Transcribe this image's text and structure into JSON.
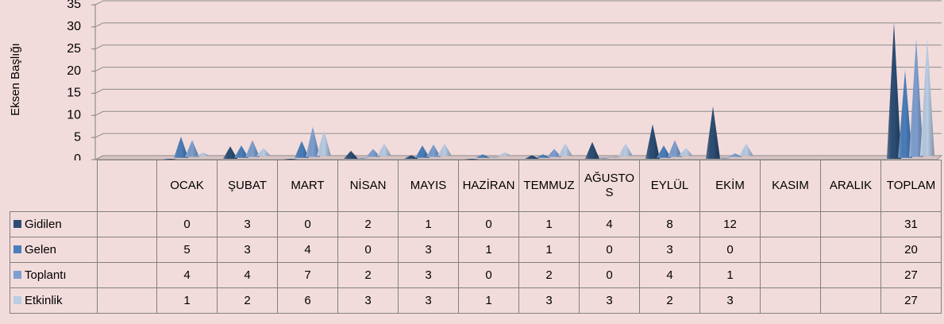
{
  "chart_data": {
    "type": "pyramid",
    "y_axis_title": "Eksen Başlığı",
    "categories": [
      null,
      "OCAK",
      "ŞUBAT",
      "MART",
      "NİSAN",
      "MAYIS",
      "HAZİRAN",
      "TEMMUZ",
      "AĞUSTOS",
      "EYLÜL",
      "EKİM",
      "KASIM",
      "ARALIK",
      "TOPLAM"
    ],
    "series": [
      {
        "name": "Gidilen",
        "color": "#2c4d75",
        "values": [
          null,
          0,
          3,
          0,
          2,
          1,
          0,
          1,
          4,
          8,
          12,
          null,
          null,
          31
        ]
      },
      {
        "name": "Gelen",
        "color": "#4a7ebb",
        "values": [
          null,
          5,
          3,
          4,
          0,
          3,
          1,
          1,
          0,
          3,
          0,
          null,
          null,
          20
        ]
      },
      {
        "name": "Toplantı",
        "color": "#7e9fd0",
        "values": [
          null,
          4,
          4,
          7,
          2,
          3,
          0,
          2,
          0,
          4,
          1,
          null,
          null,
          27
        ]
      },
      {
        "name": "Etkinlik",
        "color": "#b9cde5",
        "values": [
          null,
          1,
          2,
          6,
          3,
          3,
          1,
          3,
          3,
          2,
          3,
          null,
          null,
          27
        ]
      }
    ],
    "ylim": [
      0,
      35
    ],
    "yticks": [
      0,
      5,
      10,
      15,
      20,
      25,
      30,
      35
    ],
    "grid": true
  }
}
